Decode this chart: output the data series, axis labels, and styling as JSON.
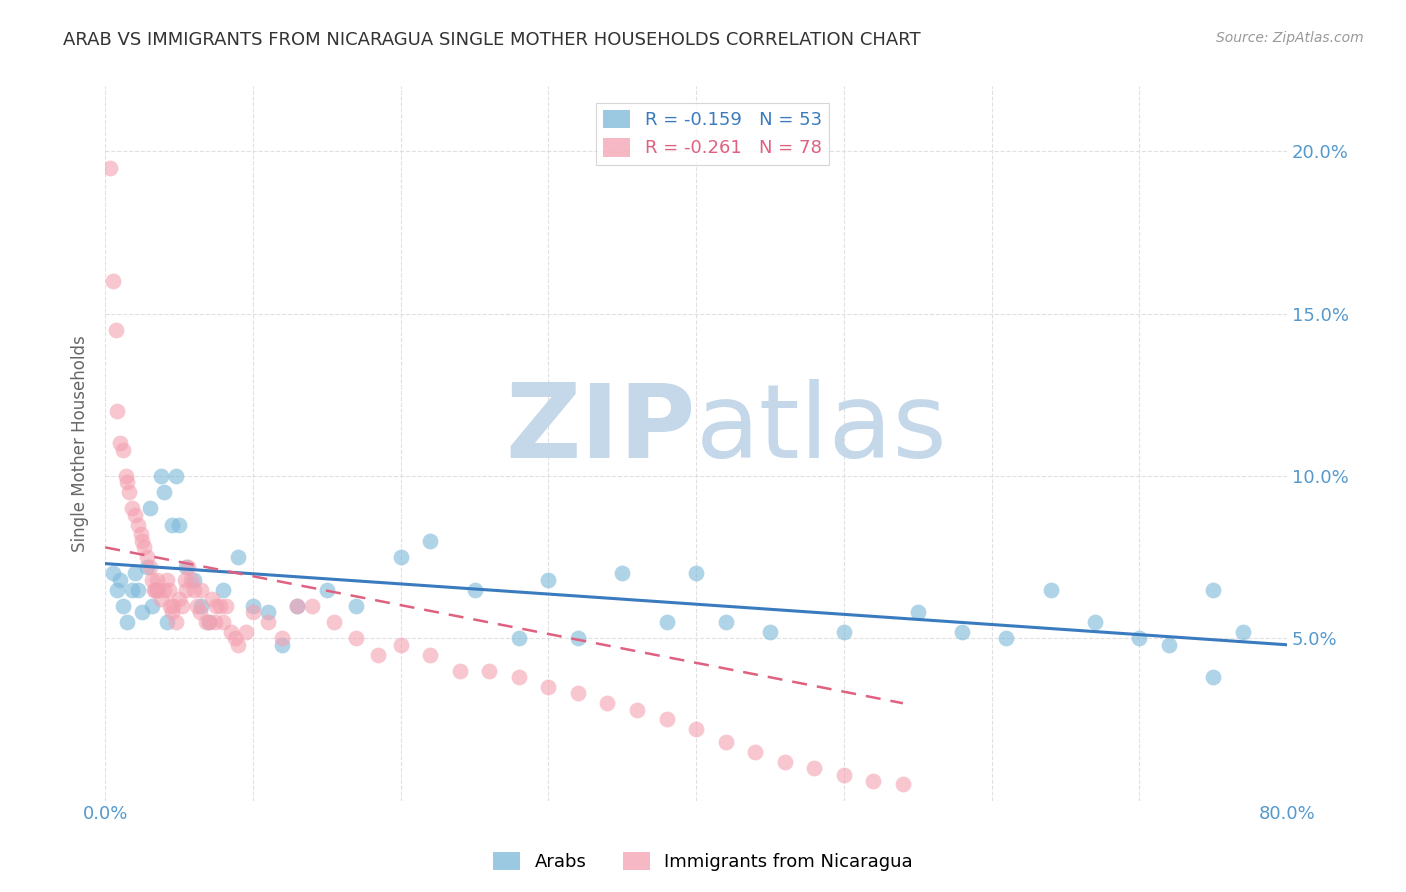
{
  "title": "ARAB VS IMMIGRANTS FROM NICARAGUA SINGLE MOTHER HOUSEHOLDS CORRELATION CHART",
  "source_text": "Source: ZipAtlas.com",
  "ylabel": "Single Mother Households",
  "xmin": 0.0,
  "xmax": 0.8,
  "ymin": 0.0,
  "ymax": 0.22,
  "yticks": [
    0.0,
    0.05,
    0.1,
    0.15,
    0.2
  ],
  "ytick_labels_right": [
    "",
    "5.0%",
    "10.0%",
    "15.0%",
    "20.0%"
  ],
  "xticks": [
    0.0,
    0.1,
    0.2,
    0.3,
    0.4,
    0.5,
    0.6,
    0.7,
    0.8
  ],
  "legend_blue_r": "R = -0.159",
  "legend_blue_n": "N = 53",
  "legend_pink_r": "R = -0.261",
  "legend_pink_n": "N = 78",
  "blue_color": "#7ab8d9",
  "pink_color": "#f4a0b0",
  "blue_line_color": "#3a7bbf",
  "pink_line_color": "#e06080",
  "watermark_zip": "ZIP",
  "watermark_atlas": "atlas",
  "watermark_zip_color": "#c5d8ea",
  "watermark_atlas_color": "#c5d8ea",
  "axis_color": "#5599cc",
  "grid_color": "#dddddd",
  "title_color": "#333333",
  "blue_scatter_x": [
    0.005,
    0.008,
    0.01,
    0.012,
    0.015,
    0.018,
    0.02,
    0.022,
    0.025,
    0.028,
    0.03,
    0.032,
    0.035,
    0.038,
    0.04,
    0.042,
    0.045,
    0.048,
    0.05,
    0.055,
    0.06,
    0.065,
    0.07,
    0.08,
    0.09,
    0.1,
    0.11,
    0.12,
    0.13,
    0.15,
    0.17,
    0.2,
    0.22,
    0.25,
    0.28,
    0.3,
    0.32,
    0.35,
    0.38,
    0.4,
    0.42,
    0.45,
    0.5,
    0.55,
    0.58,
    0.61,
    0.64,
    0.67,
    0.7,
    0.72,
    0.75,
    0.77,
    0.75
  ],
  "blue_scatter_y": [
    0.07,
    0.065,
    0.068,
    0.06,
    0.055,
    0.065,
    0.07,
    0.065,
    0.058,
    0.072,
    0.09,
    0.06,
    0.065,
    0.1,
    0.095,
    0.055,
    0.085,
    0.1,
    0.085,
    0.072,
    0.068,
    0.06,
    0.055,
    0.065,
    0.075,
    0.06,
    0.058,
    0.048,
    0.06,
    0.065,
    0.06,
    0.075,
    0.08,
    0.065,
    0.05,
    0.068,
    0.05,
    0.07,
    0.055,
    0.07,
    0.055,
    0.052,
    0.052,
    0.058,
    0.052,
    0.05,
    0.065,
    0.055,
    0.05,
    0.048,
    0.038,
    0.052,
    0.065
  ],
  "pink_scatter_x": [
    0.003,
    0.005,
    0.007,
    0.008,
    0.01,
    0.012,
    0.014,
    0.015,
    0.016,
    0.018,
    0.02,
    0.022,
    0.024,
    0.025,
    0.026,
    0.028,
    0.03,
    0.032,
    0.033,
    0.034,
    0.035,
    0.036,
    0.038,
    0.04,
    0.042,
    0.043,
    0.044,
    0.045,
    0.046,
    0.048,
    0.05,
    0.052,
    0.054,
    0.055,
    0.056,
    0.058,
    0.06,
    0.062,
    0.064,
    0.065,
    0.068,
    0.07,
    0.072,
    0.074,
    0.075,
    0.078,
    0.08,
    0.082,
    0.085,
    0.088,
    0.09,
    0.095,
    0.1,
    0.11,
    0.12,
    0.13,
    0.14,
    0.155,
    0.17,
    0.185,
    0.2,
    0.22,
    0.24,
    0.26,
    0.28,
    0.3,
    0.32,
    0.34,
    0.36,
    0.38,
    0.4,
    0.42,
    0.44,
    0.46,
    0.48,
    0.5,
    0.52,
    0.54
  ],
  "pink_scatter_y": [
    0.195,
    0.16,
    0.145,
    0.12,
    0.11,
    0.108,
    0.1,
    0.098,
    0.095,
    0.09,
    0.088,
    0.085,
    0.082,
    0.08,
    0.078,
    0.075,
    0.072,
    0.068,
    0.065,
    0.065,
    0.068,
    0.065,
    0.062,
    0.065,
    0.068,
    0.065,
    0.06,
    0.058,
    0.06,
    0.055,
    0.062,
    0.06,
    0.068,
    0.065,
    0.072,
    0.068,
    0.065,
    0.06,
    0.058,
    0.065,
    0.055,
    0.055,
    0.062,
    0.055,
    0.06,
    0.06,
    0.055,
    0.06,
    0.052,
    0.05,
    0.048,
    0.052,
    0.058,
    0.055,
    0.05,
    0.06,
    0.06,
    0.055,
    0.05,
    0.045,
    0.048,
    0.045,
    0.04,
    0.04,
    0.038,
    0.035,
    0.033,
    0.03,
    0.028,
    0.025,
    0.022,
    0.018,
    0.015,
    0.012,
    0.01,
    0.008,
    0.006,
    0.005
  ],
  "blue_trend_x": [
    0.0,
    0.8
  ],
  "blue_trend_y": [
    0.073,
    0.048
  ],
  "pink_trend_x": [
    0.0,
    0.54
  ],
  "pink_trend_y": [
    0.078,
    0.03
  ]
}
